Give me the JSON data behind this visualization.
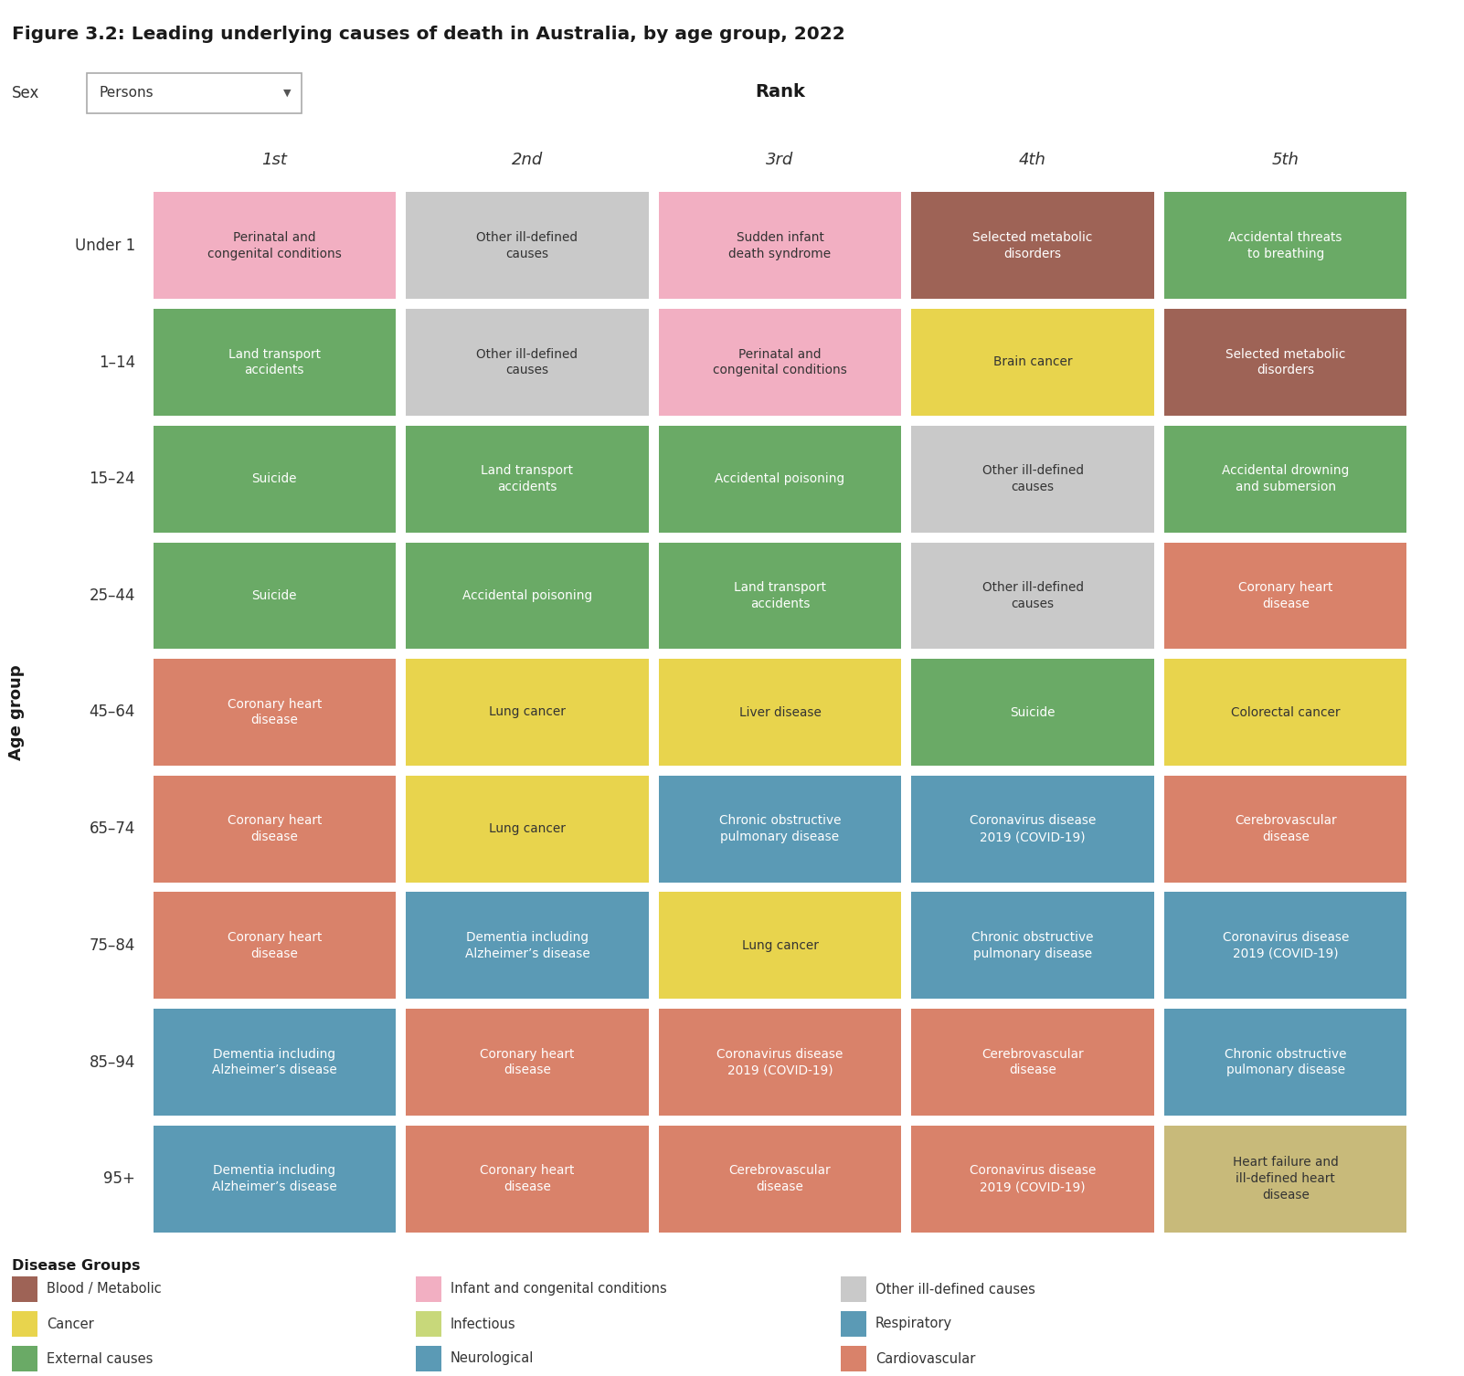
{
  "title": "Figure 3.2: Leading underlying causes of death in Australia, by age group, 2022",
  "sex_label": "Sex",
  "sex_value": "Persons",
  "rank_label": "Rank",
  "age_label": "Age group",
  "age_groups": [
    "Under 1",
    "1–14",
    "15–24",
    "25–44",
    "45–64",
    "65–74",
    "75–84",
    "85–94",
    "95+"
  ],
  "ranks": [
    "1st",
    "2nd",
    "3rd",
    "4th",
    "5th"
  ],
  "cells": [
    [
      {
        "text": "Perinatal and\ncongenital conditions",
        "color": "#f2afc2"
      },
      {
        "text": "Other ill-defined\ncauses",
        "color": "#c9c9c9"
      },
      {
        "text": "Sudden infant\ndeath syndrome",
        "color": "#f2afc2"
      },
      {
        "text": "Selected metabolic\ndisorders",
        "color": "#9e6356"
      },
      {
        "text": "Accidental threats\nto breathing",
        "color": "#6aaa66"
      }
    ],
    [
      {
        "text": "Land transport\naccidents",
        "color": "#6aaa66"
      },
      {
        "text": "Other ill-defined\ncauses",
        "color": "#c9c9c9"
      },
      {
        "text": "Perinatal and\ncongenital conditions",
        "color": "#f2afc2"
      },
      {
        "text": "Brain cancer",
        "color": "#e8d44d"
      },
      {
        "text": "Selected metabolic\ndisorders",
        "color": "#9e6356"
      }
    ],
    [
      {
        "text": "Suicide",
        "color": "#6aaa66"
      },
      {
        "text": "Land transport\naccidents",
        "color": "#6aaa66"
      },
      {
        "text": "Accidental poisoning",
        "color": "#6aaa66"
      },
      {
        "text": "Other ill-defined\ncauses",
        "color": "#c9c9c9"
      },
      {
        "text": "Accidental drowning\nand submersion",
        "color": "#6aaa66"
      }
    ],
    [
      {
        "text": "Suicide",
        "color": "#6aaa66"
      },
      {
        "text": "Accidental poisoning",
        "color": "#6aaa66"
      },
      {
        "text": "Land transport\naccidents",
        "color": "#6aaa66"
      },
      {
        "text": "Other ill-defined\ncauses",
        "color": "#c9c9c9"
      },
      {
        "text": "Coronary heart\ndisease",
        "color": "#d9826a"
      }
    ],
    [
      {
        "text": "Coronary heart\ndisease",
        "color": "#d9826a"
      },
      {
        "text": "Lung cancer",
        "color": "#e8d44d"
      },
      {
        "text": "Liver disease",
        "color": "#e8d44d"
      },
      {
        "text": "Suicide",
        "color": "#6aaa66"
      },
      {
        "text": "Colorectal cancer",
        "color": "#e8d44d"
      }
    ],
    [
      {
        "text": "Coronary heart\ndisease",
        "color": "#d9826a"
      },
      {
        "text": "Lung cancer",
        "color": "#e8d44d"
      },
      {
        "text": "Chronic obstructive\npulmonary disease",
        "color": "#5b9ab5"
      },
      {
        "text": "Coronavirus disease\n2019 (COVID-19)",
        "color": "#5b9ab5"
      },
      {
        "text": "Cerebrovascular\ndisease",
        "color": "#d9826a"
      }
    ],
    [
      {
        "text": "Coronary heart\ndisease",
        "color": "#d9826a"
      },
      {
        "text": "Dementia including\nAlzheimer’s disease",
        "color": "#5b9ab5"
      },
      {
        "text": "Lung cancer",
        "color": "#e8d44d"
      },
      {
        "text": "Chronic obstructive\npulmonary disease",
        "color": "#5b9ab5"
      },
      {
        "text": "Coronavirus disease\n2019 (COVID-19)",
        "color": "#5b9ab5"
      }
    ],
    [
      {
        "text": "Dementia including\nAlzheimer’s disease",
        "color": "#5b9ab5"
      },
      {
        "text": "Coronary heart\ndisease",
        "color": "#d9826a"
      },
      {
        "text": "Coronavirus disease\n2019 (COVID-19)",
        "color": "#d9826a"
      },
      {
        "text": "Cerebrovascular\ndisease",
        "color": "#d9826a"
      },
      {
        "text": "Chronic obstructive\npulmonary disease",
        "color": "#5b9ab5"
      }
    ],
    [
      {
        "text": "Dementia including\nAlzheimer’s disease",
        "color": "#5b9ab5"
      },
      {
        "text": "Coronary heart\ndisease",
        "color": "#d9826a"
      },
      {
        "text": "Cerebrovascular\ndisease",
        "color": "#d9826a"
      },
      {
        "text": "Coronavirus disease\n2019 (COVID-19)",
        "color": "#d9826a"
      },
      {
        "text": "Heart failure and\nill-defined heart\ndisease",
        "color": "#c8ba7a"
      }
    ]
  ],
  "legend_items": [
    {
      "label": "Blood / Metabolic",
      "color": "#9e6356",
      "col": 0,
      "row": 0
    },
    {
      "label": "Cancer",
      "color": "#e8d44d",
      "col": 0,
      "row": 1
    },
    {
      "label": "External causes",
      "color": "#6aaa66",
      "col": 0,
      "row": 2
    },
    {
      "label": "Infant and congenital conditions",
      "color": "#f2afc2",
      "col": 1,
      "row": 0
    },
    {
      "label": "Infectious",
      "color": "#c8d87a",
      "col": 1,
      "row": 1
    },
    {
      "label": "Neurological",
      "color": "#5b9ab5",
      "col": 1,
      "row": 2
    },
    {
      "label": "Other ill-defined causes",
      "color": "#c9c9c9",
      "col": 2,
      "row": 0
    },
    {
      "label": "Respiratory",
      "color": "#5b9ab5",
      "col": 2,
      "row": 1
    },
    {
      "label": "Cardiovascular",
      "color": "#d9826a",
      "col": 2,
      "row": 2
    }
  ],
  "background_color": "#ffffff"
}
